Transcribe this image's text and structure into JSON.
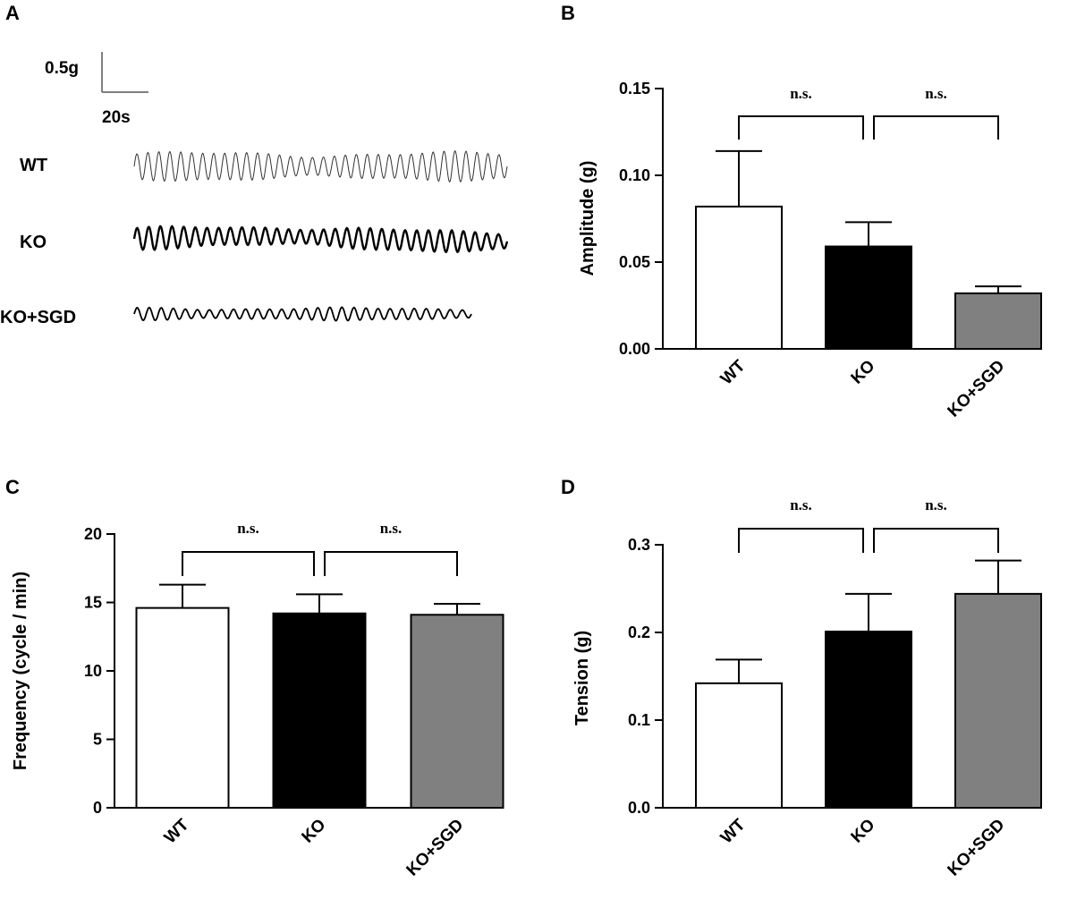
{
  "figure": {
    "panel_a": {
      "letter": "A",
      "scale_bar": {
        "vertical": "0.5g",
        "horizontal": "20s"
      },
      "traces": [
        {
          "label": "WT",
          "cycles": 34,
          "amplitude_g": 0.08
        },
        {
          "label": "KO",
          "cycles": 32,
          "amplitude_g": 0.06
        },
        {
          "label": "KO+SGD",
          "cycles": 28,
          "amplitude_g": 0.035
        }
      ]
    }
  },
  "chart_data": [
    {
      "id": "B",
      "type": "bar",
      "letter": "B",
      "categories": [
        "WT",
        "KO",
        "KO+SGD"
      ],
      "values": [
        0.082,
        0.059,
        0.032
      ],
      "errors": [
        0.032,
        0.014,
        0.004
      ],
      "colors": [
        "#ffffff",
        "#000000",
        "#808080"
      ],
      "ylabel": "Amplitude (g)",
      "ylim": [
        0,
        0.15
      ],
      "yticks": [
        "0.00",
        "0.05",
        "0.10",
        "0.15"
      ],
      "yticks_values": [
        0,
        0.05,
        0.1,
        0.15
      ],
      "significance": [
        {
          "from": 0,
          "to": 1,
          "label": "n.s."
        },
        {
          "from": 1,
          "to": 2,
          "label": "n.s."
        }
      ]
    },
    {
      "id": "C",
      "type": "bar",
      "letter": "C",
      "categories": [
        "WT",
        "KO",
        "KO+SGD"
      ],
      "values": [
        14.6,
        14.2,
        14.1
      ],
      "errors": [
        1.7,
        1.4,
        0.8
      ],
      "colors": [
        "#ffffff",
        "#000000",
        "#808080"
      ],
      "ylabel": "Frequency (cycle / min)",
      "ylim": [
        0,
        20
      ],
      "yticks": [
        "0",
        "5",
        "10",
        "15",
        "20"
      ],
      "yticks_values": [
        0,
        5,
        10,
        15,
        20
      ],
      "significance": [
        {
          "from": 0,
          "to": 1,
          "label": "n.s."
        },
        {
          "from": 1,
          "to": 2,
          "label": "n.s."
        }
      ]
    },
    {
      "id": "D",
      "type": "bar",
      "letter": "D",
      "categories": [
        "WT",
        "KO",
        "KO+SGD"
      ],
      "values": [
        0.142,
        0.201,
        0.244
      ],
      "errors": [
        0.027,
        0.043,
        0.038
      ],
      "colors": [
        "#ffffff",
        "#000000",
        "#808080"
      ],
      "ylabel": "Tension (g)",
      "ylim": [
        0,
        0.3
      ],
      "yticks": [
        "0.0",
        "0.1",
        "0.2",
        "0.3"
      ],
      "yticks_values": [
        0,
        0.1,
        0.2,
        0.3
      ],
      "significance": [
        {
          "from": 0,
          "to": 1,
          "label": "n.s."
        },
        {
          "from": 1,
          "to": 2,
          "label": "n.s."
        }
      ]
    }
  ]
}
